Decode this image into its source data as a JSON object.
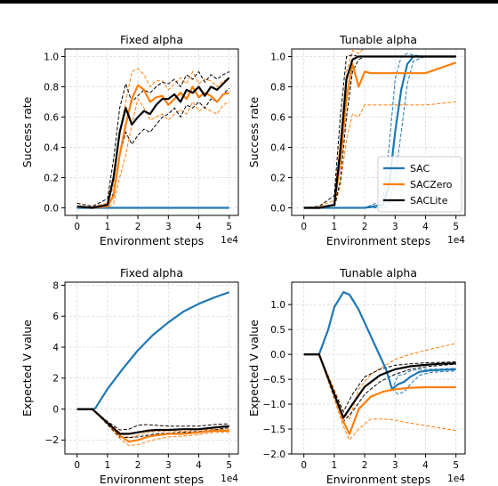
{
  "colors": {
    "SAC": "#1f77b4",
    "SACZero": "#ff7f0e",
    "SACLite": "#000000",
    "grid": "#d9d9d9"
  },
  "chart_data": [
    {
      "type": "line",
      "title": "Fixed alpha",
      "xlabel": "Environment steps",
      "ylabel": "Success rate",
      "x_multiplier": "1e4",
      "xlim": [
        -0.4,
        5.3
      ],
      "ylim": [
        -0.05,
        1.05
      ],
      "xticks": [
        0,
        1,
        2,
        3,
        4,
        5
      ],
      "yticks": [
        0.0,
        0.2,
        0.4,
        0.6,
        0.8,
        1.0
      ],
      "grid": true,
      "series": [
        {
          "name": "SAC",
          "color": "#1f77b4",
          "x": [
            0,
            5
          ],
          "y": [
            0.0,
            0.0
          ]
        },
        {
          "name": "SACZero",
          "color": "#ff7f0e",
          "x": [
            0,
            0.5,
            1.0,
            1.2,
            1.4,
            1.6,
            1.8,
            2.0,
            2.2,
            2.4,
            2.6,
            2.8,
            3.0,
            3.2,
            3.4,
            3.6,
            3.8,
            4.0,
            4.2,
            4.4,
            4.6,
            4.8,
            5.0
          ],
          "y": [
            0.01,
            0.0,
            0.01,
            0.08,
            0.35,
            0.55,
            0.72,
            0.81,
            0.78,
            0.7,
            0.73,
            0.74,
            0.68,
            0.72,
            0.76,
            0.72,
            0.8,
            0.73,
            0.76,
            0.74,
            0.7,
            0.75,
            0.76
          ],
          "lower": [
            0.0,
            0.0,
            0.0,
            0.03,
            0.2,
            0.35,
            0.55,
            0.72,
            0.66,
            0.58,
            0.6,
            0.62,
            0.58,
            0.62,
            0.65,
            0.62,
            0.7,
            0.64,
            0.66,
            0.64,
            0.62,
            0.68,
            0.7
          ],
          "upper": [
            0.03,
            0.01,
            0.03,
            0.14,
            0.5,
            0.7,
            0.9,
            0.92,
            0.88,
            0.8,
            0.84,
            0.84,
            0.78,
            0.82,
            0.86,
            0.82,
            0.9,
            0.82,
            0.85,
            0.84,
            0.8,
            0.84,
            0.85
          ]
        },
        {
          "name": "SACLite",
          "color": "#000000",
          "x": [
            0,
            0.5,
            1.0,
            1.2,
            1.4,
            1.6,
            1.8,
            2.0,
            2.2,
            2.4,
            2.6,
            2.8,
            3.0,
            3.2,
            3.4,
            3.6,
            3.8,
            4.0,
            4.2,
            4.4,
            4.6,
            4.8,
            5.0
          ],
          "y": [
            0.01,
            0.0,
            0.02,
            0.2,
            0.5,
            0.66,
            0.55,
            0.6,
            0.64,
            0.62,
            0.68,
            0.72,
            0.72,
            0.75,
            0.7,
            0.78,
            0.76,
            0.8,
            0.74,
            0.8,
            0.78,
            0.82,
            0.86
          ],
          "lower": [
            0.0,
            0.0,
            0.0,
            0.1,
            0.35,
            0.5,
            0.42,
            0.48,
            0.52,
            0.5,
            0.55,
            0.6,
            0.62,
            0.66,
            0.6,
            0.68,
            0.66,
            0.7,
            0.66,
            0.72,
            0.7,
            0.75,
            0.79
          ],
          "upper": [
            0.03,
            0.01,
            0.06,
            0.32,
            0.66,
            0.82,
            0.7,
            0.74,
            0.78,
            0.76,
            0.8,
            0.83,
            0.82,
            0.85,
            0.8,
            0.88,
            0.85,
            0.9,
            0.83,
            0.88,
            0.85,
            0.88,
            0.9
          ]
        }
      ]
    },
    {
      "type": "line",
      "title": "Tunable alpha",
      "xlabel": "Environment steps",
      "ylabel": "Success rate",
      "x_multiplier": "1e4",
      "xlim": [
        -0.4,
        5.3
      ],
      "ylim": [
        -0.05,
        1.05
      ],
      "xticks": [
        0,
        1,
        2,
        3,
        4,
        5
      ],
      "yticks": [
        0.0,
        0.2,
        0.4,
        0.6,
        0.8,
        1.0
      ],
      "grid": true,
      "legend": "lower-right",
      "series": [
        {
          "name": "SAC",
          "color": "#1f77b4",
          "x": [
            0,
            0.5,
            1.0,
            2.0,
            2.6,
            2.8,
            3.0,
            3.2,
            3.4,
            3.6,
            4.0,
            5.0
          ],
          "y": [
            0.0,
            0.0,
            0.0,
            0.0,
            0.02,
            0.15,
            0.5,
            0.78,
            0.95,
            1.0,
            1.0,
            1.0
          ],
          "lower": [
            0.0,
            0.0,
            0.0,
            0.0,
            0.0,
            0.02,
            0.2,
            0.5,
            0.82,
            0.97,
            1.0,
            1.0
          ],
          "upper": [
            0.0,
            0.0,
            0.0,
            0.0,
            0.05,
            0.4,
            0.85,
            1.0,
            1.02,
            1.01,
            1.0,
            1.0
          ]
        },
        {
          "name": "SACZero",
          "color": "#ff7f0e",
          "x": [
            0,
            0.5,
            1.0,
            1.2,
            1.4,
            1.6,
            1.8,
            2.0,
            2.2,
            2.5,
            3.0,
            4.0,
            5.0
          ],
          "y": [
            0.0,
            0.0,
            0.02,
            0.3,
            0.72,
            0.95,
            0.8,
            0.9,
            0.89,
            0.89,
            0.89,
            0.89,
            0.96
          ],
          "lower": [
            0.0,
            0.0,
            0.0,
            0.15,
            0.45,
            0.62,
            0.6,
            0.68,
            0.68,
            0.68,
            0.68,
            0.68,
            0.7
          ],
          "upper": [
            0.0,
            0.01,
            0.05,
            0.45,
            0.9,
            1.04,
            1.02,
            1.06,
            1.08,
            1.09,
            1.09,
            1.09,
            1.1
          ]
        },
        {
          "name": "SACLite",
          "color": "#000000",
          "x": [
            0,
            0.5,
            1.0,
            1.2,
            1.4,
            1.6,
            1.8,
            2.0,
            3.0,
            4.0,
            5.0
          ],
          "y": [
            0.0,
            0.0,
            0.02,
            0.38,
            0.85,
            0.98,
            1.0,
            1.0,
            1.0,
            1.0,
            1.0
          ],
          "lower": [
            0.0,
            0.0,
            0.0,
            0.18,
            0.6,
            0.9,
            0.98,
            1.0,
            1.0,
            1.0,
            1.0
          ],
          "upper": [
            0.0,
            0.01,
            0.08,
            0.6,
            1.0,
            1.01,
            1.0,
            1.0,
            1.0,
            1.0,
            1.0
          ]
        }
      ]
    },
    {
      "type": "line",
      "title": "Fixed alpha",
      "xlabel": "Environment steps",
      "ylabel": "Expected V value",
      "x_multiplier": "1e4",
      "xlim": [
        -0.4,
        5.3
      ],
      "ylim": [
        -2.9,
        8.2
      ],
      "xticks": [
        0,
        1,
        2,
        3,
        4,
        5
      ],
      "yticks": [
        -2,
        0,
        2,
        4,
        6,
        8
      ],
      "grid": true,
      "series": [
        {
          "name": "SAC",
          "color": "#1f77b4",
          "x": [
            0,
            0.5,
            0.6,
            1.0,
            1.5,
            2.0,
            2.5,
            3.0,
            3.5,
            4.0,
            4.5,
            5.0
          ],
          "y": [
            0.0,
            0.0,
            0.05,
            1.3,
            2.6,
            3.8,
            4.8,
            5.6,
            6.3,
            6.8,
            7.2,
            7.55
          ]
        },
        {
          "name": "SACZero",
          "color": "#ff7f0e",
          "x": [
            0,
            0.5,
            1.0,
            1.4,
            1.7,
            2.0,
            2.3,
            2.6,
            3.0,
            3.5,
            4.0,
            4.5,
            5.0
          ],
          "y": [
            0.0,
            0.0,
            -0.9,
            -1.7,
            -2.1,
            -2.0,
            -1.8,
            -1.7,
            -1.6,
            -1.6,
            -1.5,
            -1.4,
            -1.4
          ],
          "lower": [
            0.0,
            0.0,
            -1.0,
            -1.9,
            -2.35,
            -2.3,
            -2.1,
            -1.95,
            -1.8,
            -1.75,
            -1.65,
            -1.5,
            -1.5
          ],
          "upper": [
            0.0,
            0.0,
            -0.8,
            -1.5,
            -1.85,
            -1.7,
            -1.5,
            -1.45,
            -1.4,
            -1.45,
            -1.35,
            -1.3,
            -1.3
          ]
        },
        {
          "name": "SACLite",
          "color": "#000000",
          "x": [
            0,
            0.5,
            1.0,
            1.4,
            1.7,
            2.0,
            2.3,
            2.6,
            3.0,
            3.5,
            4.0,
            4.5,
            5.0
          ],
          "y": [
            0.0,
            0.0,
            -0.9,
            -1.6,
            -1.6,
            -1.5,
            -1.4,
            -1.35,
            -1.35,
            -1.3,
            -1.3,
            -1.2,
            -1.1
          ],
          "lower": [
            0.0,
            0.0,
            -1.0,
            -1.8,
            -1.85,
            -1.8,
            -1.7,
            -1.6,
            -1.55,
            -1.5,
            -1.45,
            -1.35,
            -1.2
          ],
          "upper": [
            0.0,
            0.0,
            -0.8,
            -1.35,
            -1.3,
            -1.05,
            -1.0,
            -1.05,
            -1.1,
            -1.1,
            -1.1,
            -1.0,
            -0.95
          ]
        }
      ]
    },
    {
      "type": "line",
      "title": "Tunable alpha",
      "xlabel": "Environment steps",
      "ylabel": "Expected V value",
      "x_multiplier": "1e4",
      "xlim": [
        -0.4,
        5.3
      ],
      "ylim": [
        -2.0,
        1.45
      ],
      "xticks": [
        0,
        1,
        2,
        3,
        4,
        5
      ],
      "yticks": [
        -2.0,
        -1.5,
        -1.0,
        -0.5,
        0.0,
        0.5,
        1.0
      ],
      "grid": true,
      "series": [
        {
          "name": "SAC",
          "color": "#1f77b4",
          "x": [
            0,
            0.5,
            0.8,
            1.0,
            1.3,
            1.5,
            1.8,
            2.1,
            2.4,
            2.7,
            2.9,
            3.1,
            3.3,
            3.5,
            3.8,
            4.2,
            5.0
          ],
          "y": [
            0.0,
            0.0,
            0.5,
            0.95,
            1.25,
            1.2,
            0.9,
            0.5,
            0.1,
            -0.3,
            -0.7,
            -0.6,
            -0.55,
            -0.45,
            -0.35,
            -0.32,
            -0.3
          ],
          "lower": [
            0.0,
            0.0,
            0.5,
            0.95,
            1.25,
            1.2,
            0.9,
            0.5,
            0.1,
            -0.3,
            -0.7,
            -0.8,
            -0.75,
            -0.6,
            -0.42,
            -0.36,
            -0.33
          ],
          "upper": [
            0.0,
            0.0,
            0.5,
            0.95,
            1.25,
            1.2,
            0.9,
            0.5,
            0.1,
            -0.3,
            -0.7,
            -0.42,
            -0.4,
            -0.33,
            -0.3,
            -0.3,
            -0.28
          ]
        },
        {
          "name": "SACZero",
          "color": "#ff7f0e",
          "x": [
            0,
            0.5,
            1.0,
            1.3,
            1.5,
            1.8,
            2.2,
            2.6,
            3.0,
            3.5,
            4.0,
            4.5,
            5.0
          ],
          "y": [
            0.0,
            0.0,
            -0.8,
            -1.35,
            -1.6,
            -1.1,
            -0.85,
            -0.75,
            -0.7,
            -0.67,
            -0.66,
            -0.66,
            -0.66
          ],
          "lower": [
            0.0,
            0.0,
            -0.9,
            -1.45,
            -1.72,
            -1.5,
            -1.3,
            -1.3,
            -1.32,
            -1.38,
            -1.43,
            -1.48,
            -1.53
          ],
          "upper": [
            0.0,
            0.0,
            -0.7,
            -1.15,
            -1.3,
            -0.7,
            -0.4,
            -0.25,
            -0.1,
            0.0,
            0.08,
            0.15,
            0.22
          ]
        },
        {
          "name": "SACLite",
          "color": "#000000",
          "x": [
            0,
            0.5,
            1.0,
            1.3,
            1.6,
            2.0,
            2.5,
            3.0,
            3.5,
            4.0,
            4.5,
            5.0
          ],
          "y": [
            0.0,
            0.0,
            -0.8,
            -1.27,
            -1.0,
            -0.65,
            -0.42,
            -0.3,
            -0.24,
            -0.21,
            -0.19,
            -0.18
          ],
          "lower": [
            0.0,
            0.0,
            -0.85,
            -1.35,
            -1.15,
            -0.8,
            -0.55,
            -0.4,
            -0.3,
            -0.25,
            -0.22,
            -0.2
          ],
          "upper": [
            0.0,
            0.0,
            -0.75,
            -1.15,
            -0.8,
            -0.45,
            -0.3,
            -0.22,
            -0.19,
            -0.17,
            -0.16,
            -0.15
          ]
        }
      ]
    }
  ]
}
